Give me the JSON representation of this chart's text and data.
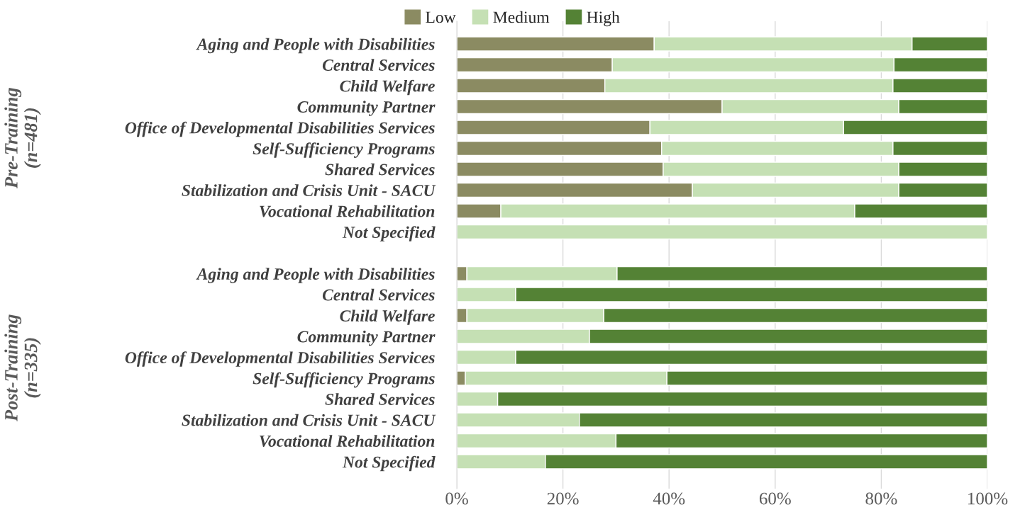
{
  "chart_data": {
    "type": "bar",
    "orientation": "horizontal",
    "stacked": true,
    "categories": [
      "Aging and People with Disabilities",
      "Central Services",
      "Child Welfare",
      "Community Partner",
      "Office of Developmental Disabilities Services",
      "Self-Sufficiency Programs",
      "Shared Services",
      "Stabilization and Crisis Unit - SACU",
      "Vocational Rehabilitation",
      "Not Specified",
      null,
      "Aging and People with Disabilities",
      "Central Services",
      "Child Welfare",
      "Community Partner",
      "Office of Developmental Disabilities Services",
      "Self-Sufficiency Programs",
      "Shared Services",
      "Stabilization and Crisis Unit - SACU",
      "Vocational Rehabilitation",
      "Not Specified"
    ],
    "series": [
      {
        "name": "Low",
        "color": "#8b8b62",
        "values": [
          37.2,
          29.3,
          27.9,
          50.0,
          36.4,
          38.6,
          38.9,
          44.4,
          8.3,
          0,
          null,
          1.9,
          0,
          1.9,
          0,
          0,
          1.6,
          0,
          0,
          0,
          0
        ]
      },
      {
        "name": "Medium",
        "color": "#c5e0b4",
        "values": [
          48.6,
          53.1,
          54.3,
          33.3,
          36.5,
          43.6,
          44.4,
          38.9,
          66.7,
          100,
          null,
          28.3,
          11.1,
          25.8,
          25.0,
          11.1,
          38.0,
          7.7,
          23.1,
          30.0,
          16.7
        ]
      },
      {
        "name": "High",
        "color": "#548235",
        "values": [
          14.2,
          17.6,
          17.8,
          16.7,
          27.1,
          17.8,
          16.7,
          16.7,
          25.0,
          0,
          null,
          69.8,
          88.9,
          72.3,
          75.0,
          88.9,
          60.4,
          92.3,
          76.9,
          70.0,
          83.3
        ]
      }
    ],
    "xlim": [
      0,
      100
    ],
    "xticks": [
      {
        "value": 0,
        "label": "0%"
      },
      {
        "value": 20,
        "label": "20%"
      },
      {
        "value": 40,
        "label": "40%"
      },
      {
        "value": 60,
        "label": "60%"
      },
      {
        "value": 80,
        "label": "80%"
      },
      {
        "value": 100,
        "label": "100%"
      }
    ],
    "grid": "x",
    "legend": "top",
    "annotations": [
      "Pre-Training\n(n=481)",
      "Post-Training\n(n=335)"
    ]
  }
}
